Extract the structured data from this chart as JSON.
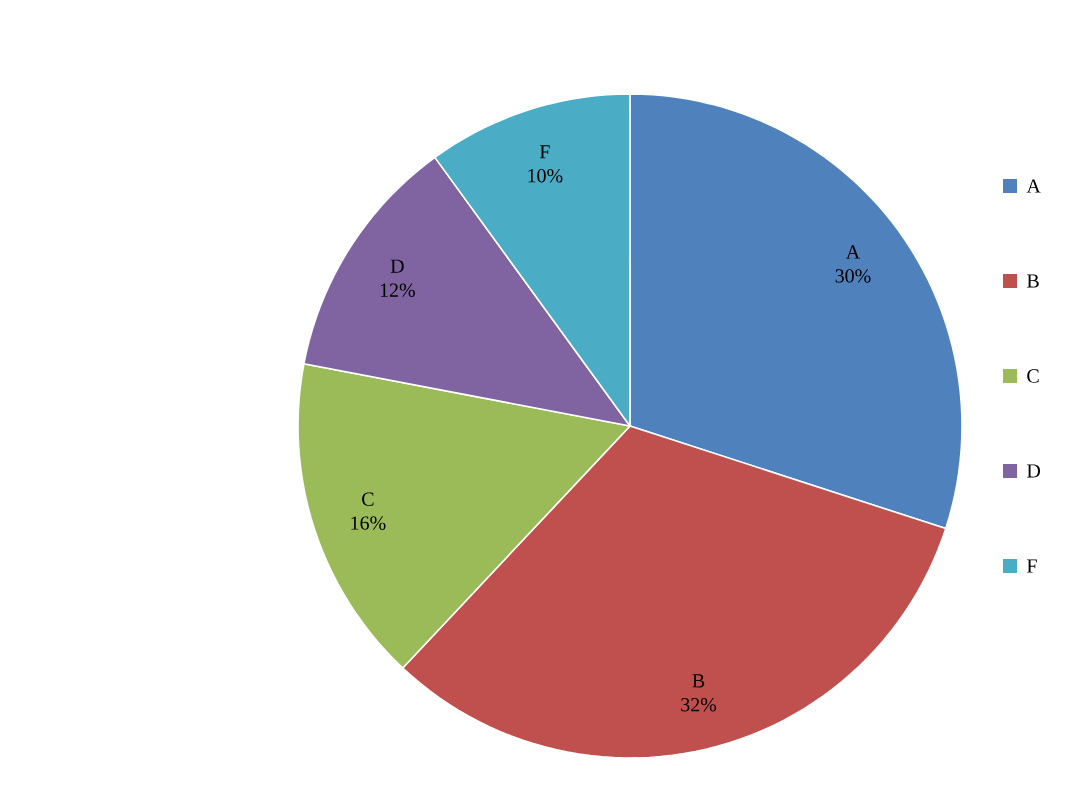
{
  "chart_data": {
    "type": "pie",
    "categories": [
      "A",
      "B",
      "C",
      "D",
      "F"
    ],
    "values": [
      30,
      32,
      16,
      12,
      10
    ],
    "value_labels": [
      "30%",
      "32%",
      "16%",
      "12%",
      "10%"
    ],
    "colors": [
      "#4f81bd",
      "#c0504d",
      "#9bbb59",
      "#8064a2",
      "#4bacc6"
    ],
    "legend": "right"
  }
}
